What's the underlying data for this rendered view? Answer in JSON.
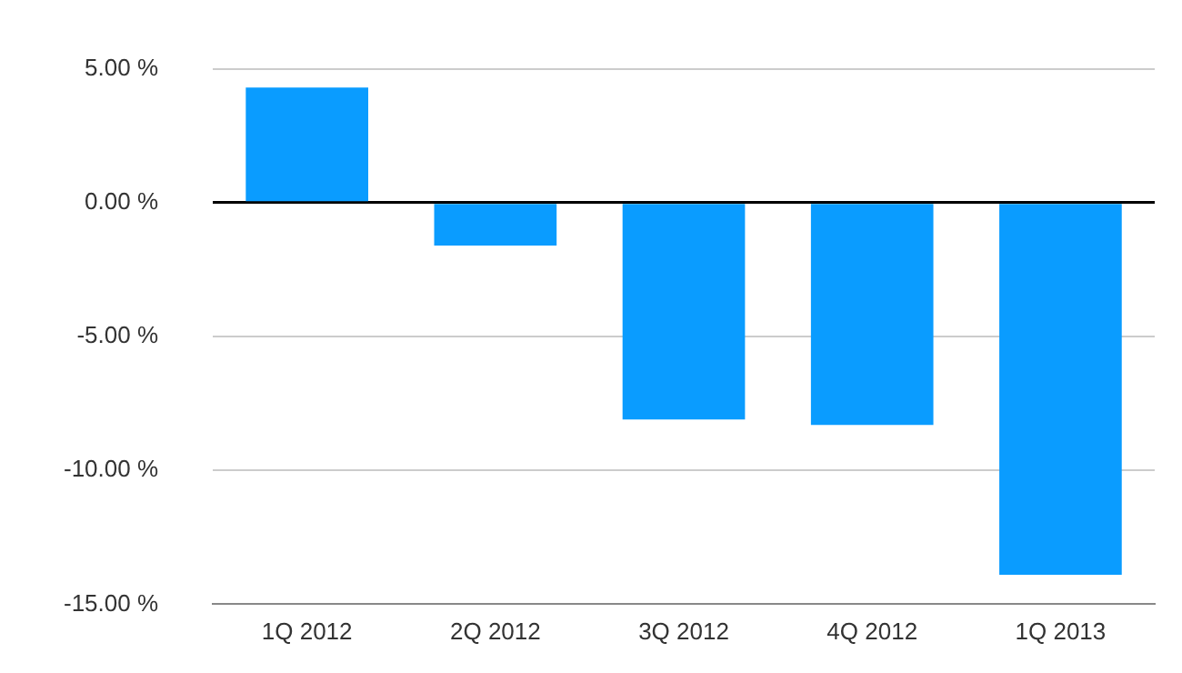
{
  "chart_data": {
    "type": "bar",
    "categories": [
      "1Q 2012",
      "2Q 2012",
      "3Q 2012",
      "4Q 2012",
      "1Q 2013"
    ],
    "values": [
      4.3,
      -1.6,
      -8.1,
      -8.3,
      -13.9
    ],
    "color": "#0a9cff",
    "ylim": [
      -15,
      5
    ],
    "yticks": [
      {
        "value": -15,
        "label": "-15.00 %"
      },
      {
        "value": -10,
        "label": "-10.00 %"
      },
      {
        "value": -5,
        "label": "-5.00 %"
      },
      {
        "value": 0,
        "label": "0.00 %"
      },
      {
        "value": 5,
        "label": "5.00 %"
      }
    ],
    "grid": "y"
  }
}
